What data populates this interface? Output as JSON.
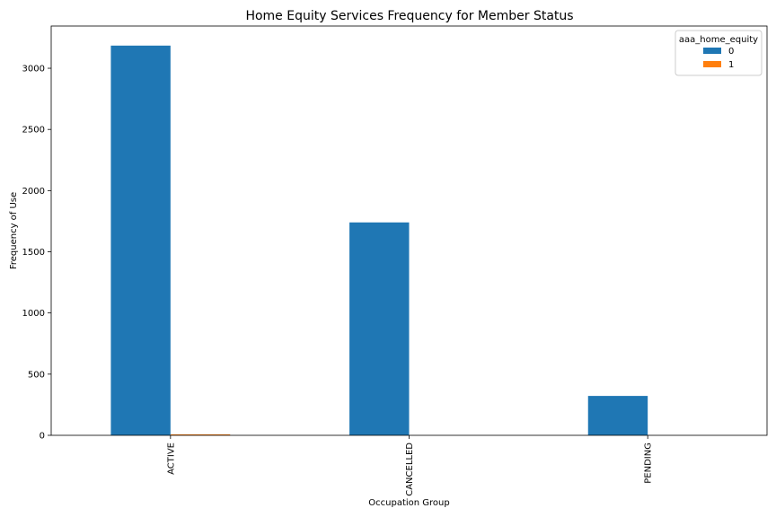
{
  "chart_data": {
    "type": "bar",
    "title": "Home Equity Services Frequency for Member Status",
    "xlabel": "Occupation Group",
    "ylabel": "Frequency of Use",
    "categories": [
      "ACTIVE",
      "CANCELLED",
      "PENDING"
    ],
    "series": [
      {
        "name": "0",
        "values": [
          3185,
          1740,
          322
        ],
        "color": "#1f77b4"
      },
      {
        "name": "1",
        "values": [
          8,
          0,
          0
        ],
        "color": "#ff7f0e"
      }
    ],
    "ylim": [
      0,
      3345
    ],
    "yticks": [
      0,
      500,
      1000,
      1500,
      2000,
      2500,
      3000
    ],
    "grid": false,
    "legend": {
      "title": "aaa_home_equity",
      "placement": "top-right"
    }
  }
}
